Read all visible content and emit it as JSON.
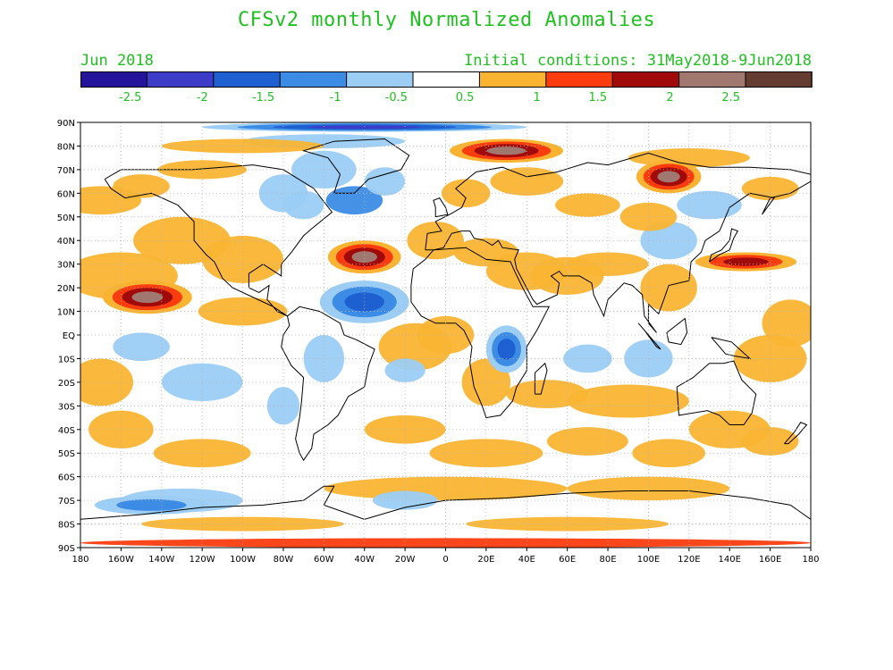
{
  "title": "CFSv2 monthly Normalized Anomalies",
  "month_label": "Jun 2018",
  "init_label": "Initial conditions: 31May2018-9Jun2018",
  "colorbar": {
    "colors": [
      "#23149b",
      "#3c3cc8",
      "#1e5fd2",
      "#3c8ce6",
      "#9bcdf5",
      "#ffffff",
      "#fab432",
      "#fa3c0f",
      "#a00a0a",
      "#a07870",
      "#643c32"
    ],
    "tick_labels": [
      "-2.5",
      "-2",
      "-1.5",
      "-1",
      "-0.5",
      "0.5",
      "1",
      "1.5",
      "2",
      "2.5"
    ]
  },
  "map": {
    "lon_labels": [
      "180",
      "160W",
      "140W",
      "120W",
      "100W",
      "80W",
      "60W",
      "40W",
      "20W",
      "0",
      "20E",
      "40E",
      "60E",
      "80E",
      "100E",
      "120E",
      "140E",
      "160E",
      "180"
    ],
    "lat_labels": [
      "90N",
      "80N",
      "70N",
      "60N",
      "50N",
      "40N",
      "30N",
      "20N",
      "10N",
      "EQ",
      "10S",
      "20S",
      "30S",
      "40S",
      "50S",
      "60S",
      "70S",
      "80S",
      "90S"
    ],
    "grid_color": "#b4b4b4",
    "label_color": "#000000"
  },
  "anomaly_regions": [
    {
      "label": "North Atlantic warm anomaly",
      "lon": -40,
      "lat": 33,
      "rlon": 18,
      "rlat": 7,
      "level": 4
    },
    {
      "label": "NE Pacific warm anomaly",
      "lon": -147,
      "lat": 16,
      "rlon": 22,
      "rlat": 7,
      "level": 4
    },
    {
      "label": "Kara Sea warm anomaly",
      "lon": 30,
      "lat": 78,
      "rlon": 28,
      "rlat": 5,
      "level": 4
    },
    {
      "label": "East Siberia warm anomaly",
      "lon": 110,
      "lat": 67,
      "rlon": 16,
      "rlat": 7,
      "level": 4
    },
    {
      "label": "NW Pacific warm anomaly",
      "lon": 148,
      "lat": 31,
      "rlon": 25,
      "rlat": 4,
      "level": 3
    },
    {
      "label": "Tropical Atlantic cold anomaly",
      "lon": -40,
      "lat": 14,
      "rlon": 22,
      "rlat": 9,
      "level": -3
    },
    {
      "label": "East Africa cold anomaly",
      "lon": 30,
      "lat": -6,
      "rlon": 10,
      "rlat": 10,
      "level": -3
    },
    {
      "label": "Arctic cold anomaly",
      "lon": -40,
      "lat": 88,
      "rlon": 80,
      "rlat": 2,
      "level": -4
    },
    {
      "label": "Southern Ocean cold anomaly",
      "lon": -145,
      "lat": -72,
      "rlon": 28,
      "rlat": 4,
      "level": -2
    }
  ]
}
